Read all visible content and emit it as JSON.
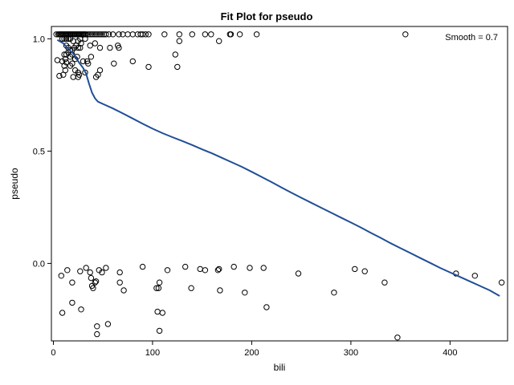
{
  "chart_data": {
    "type": "scatter",
    "title": "Fit Plot for pseudo",
    "xlabel": "bili",
    "ylabel": "pseudo",
    "annotation": "Smooth = 0.7",
    "xlim": [
      -2,
      458
    ],
    "ylim": [
      -0.345,
      1.055
    ],
    "xticks": [
      0,
      100,
      200,
      300,
      400
    ],
    "xtick_labels": [
      "0",
      "100",
      "200",
      "300",
      "400"
    ],
    "yticks": [
      0.0,
      0.5,
      1.0
    ],
    "ytick_labels": [
      "0.0",
      "0.5",
      "1.0"
    ],
    "grid": false,
    "colors": {
      "fit_line": "#1f4e96",
      "points": "#000000",
      "frame": "#000000"
    },
    "series": [
      {
        "type": "scatter",
        "marker": "open-circle",
        "points": [
          [
            3,
            1.02
          ],
          [
            5,
            1.02
          ],
          [
            6,
            1.02
          ],
          [
            7,
            1.02
          ],
          [
            8,
            1.02
          ],
          [
            9,
            1.02
          ],
          [
            10,
            1.02
          ],
          [
            11,
            1.02
          ],
          [
            12,
            1.02
          ],
          [
            13,
            1.02
          ],
          [
            14,
            1.02
          ],
          [
            15,
            1.02
          ],
          [
            16,
            1.02
          ],
          [
            17,
            1.02
          ],
          [
            18,
            1.02
          ],
          [
            19,
            1.02
          ],
          [
            20,
            1.02
          ],
          [
            21,
            1.02
          ],
          [
            22,
            1.02
          ],
          [
            23,
            1.02
          ],
          [
            24,
            1.02
          ],
          [
            25,
            1.02
          ],
          [
            26,
            1.02
          ],
          [
            27,
            1.02
          ],
          [
            28,
            1.02
          ],
          [
            29,
            1.02
          ],
          [
            30,
            1.02
          ],
          [
            31,
            1.02
          ],
          [
            32,
            1.02
          ],
          [
            33,
            1.02
          ],
          [
            35,
            1.02
          ],
          [
            37,
            1.02
          ],
          [
            39,
            1.02
          ],
          [
            41,
            1.02
          ],
          [
            43,
            1.02
          ],
          [
            45,
            1.02
          ],
          [
            47,
            1.02
          ],
          [
            49,
            1.02
          ],
          [
            51,
            1.02
          ],
          [
            53,
            1.02
          ],
          [
            56,
            1.02
          ],
          [
            60,
            1.02
          ],
          [
            66,
            1.02
          ],
          [
            70,
            1.02
          ],
          [
            75,
            1.02
          ],
          [
            80,
            1.02
          ],
          [
            85,
            1.02
          ],
          [
            88,
            1.02
          ],
          [
            90,
            1.02
          ],
          [
            93,
            1.02
          ],
          [
            96,
            1.02
          ],
          [
            112,
            1.02
          ],
          [
            127,
            1.02
          ],
          [
            140,
            1.02
          ],
          [
            153,
            1.02
          ],
          [
            159,
            1.02
          ],
          [
            178,
            1.02
          ],
          [
            179,
            1.02
          ],
          [
            188,
            1.02
          ],
          [
            205,
            1.02
          ],
          [
            355,
            1.02
          ],
          [
            9,
            1.0
          ],
          [
            11,
            1.0
          ],
          [
            13,
            1.0
          ],
          [
            15,
            1.0
          ],
          [
            17,
            1.0
          ],
          [
            20,
            0.99
          ],
          [
            25,
            0.99
          ],
          [
            27,
            1.0
          ],
          [
            32,
            1.0
          ],
          [
            28,
            0.98
          ],
          [
            37,
            0.97
          ],
          [
            127,
            0.99
          ],
          [
            167,
            0.99
          ],
          [
            13,
            0.97
          ],
          [
            15,
            0.96
          ],
          [
            17,
            0.95
          ],
          [
            19,
            0.95
          ],
          [
            21,
            0.96
          ],
          [
            23,
            0.97
          ],
          [
            25,
            0.96
          ],
          [
            27,
            0.96
          ],
          [
            42,
            0.98
          ],
          [
            47,
            0.96
          ],
          [
            57,
            0.96
          ],
          [
            65,
            0.97
          ],
          [
            66,
            0.96
          ],
          [
            11,
            0.93
          ],
          [
            13,
            0.93
          ],
          [
            15,
            0.94
          ],
          [
            17,
            0.92
          ],
          [
            19,
            0.93
          ],
          [
            22,
            0.91
          ],
          [
            30,
            0.9
          ],
          [
            34,
            0.9
          ],
          [
            38,
            0.92
          ],
          [
            12,
            0.91
          ],
          [
            24,
            0.92
          ],
          [
            123,
            0.93
          ],
          [
            4,
            0.905
          ],
          [
            9,
            0.9
          ],
          [
            11,
            0.88
          ],
          [
            13,
            0.895
          ],
          [
            19,
            0.89
          ],
          [
            22,
            0.86
          ],
          [
            25,
            0.85
          ],
          [
            26,
            0.84
          ],
          [
            32,
            0.85
          ],
          [
            35,
            0.89
          ],
          [
            43,
            0.83
          ],
          [
            45,
            0.84
          ],
          [
            47,
            0.86
          ],
          [
            61,
            0.89
          ],
          [
            80,
            0.9
          ],
          [
            96,
            0.875
          ],
          [
            125,
            0.875
          ],
          [
            6,
            0.835
          ],
          [
            10,
            0.84
          ],
          [
            12,
            0.86
          ],
          [
            17,
            0.88
          ],
          [
            20,
            0.83
          ],
          [
            25,
            0.83
          ],
          [
            8,
            -0.055
          ],
          [
            14,
            -0.03
          ],
          [
            19,
            -0.085
          ],
          [
            27,
            -0.035
          ],
          [
            33,
            -0.02
          ],
          [
            37,
            -0.04
          ],
          [
            38,
            -0.065
          ],
          [
            39,
            -0.1
          ],
          [
            40,
            -0.11
          ],
          [
            42,
            -0.085
          ],
          [
            43,
            -0.08
          ],
          [
            46,
            -0.03
          ],
          [
            49,
            -0.04
          ],
          [
            53,
            -0.02
          ],
          [
            67,
            -0.04
          ],
          [
            67,
            -0.085
          ],
          [
            71,
            -0.12
          ],
          [
            90,
            -0.015
          ],
          [
            104,
            -0.11
          ],
          [
            106,
            -0.11
          ],
          [
            107,
            -0.085
          ],
          [
            115,
            -0.03
          ],
          [
            133,
            -0.015
          ],
          [
            139,
            -0.11
          ],
          [
            148,
            -0.025
          ],
          [
            153,
            -0.03
          ],
          [
            166,
            -0.03
          ],
          [
            167,
            -0.025
          ],
          [
            168,
            -0.12
          ],
          [
            182,
            -0.015
          ],
          [
            193,
            -0.13
          ],
          [
            198,
            -0.02
          ],
          [
            212,
            -0.02
          ],
          [
            215,
            -0.195
          ],
          [
            247,
            -0.045
          ],
          [
            283,
            -0.13
          ],
          [
            304,
            -0.025
          ],
          [
            314,
            -0.035
          ],
          [
            334,
            -0.085
          ],
          [
            406,
            -0.045
          ],
          [
            425,
            -0.055
          ],
          [
            452,
            -0.085
          ],
          [
            9,
            -0.22
          ],
          [
            19,
            -0.175
          ],
          [
            28,
            -0.205
          ],
          [
            44,
            -0.28
          ],
          [
            55,
            -0.27
          ],
          [
            105,
            -0.215
          ],
          [
            110,
            -0.22
          ],
          [
            107,
            -0.3
          ],
          [
            44,
            -0.315
          ],
          [
            347,
            -0.33
          ]
        ]
      },
      {
        "type": "line",
        "name": "",
        "points": [
          [
            4,
            0.995
          ],
          [
            10,
            0.98
          ],
          [
            15,
            0.955
          ],
          [
            20,
            0.935
          ],
          [
            25,
            0.9
          ],
          [
            30,
            0.87
          ],
          [
            33,
            0.845
          ],
          [
            36,
            0.8
          ],
          [
            39,
            0.76
          ],
          [
            42,
            0.735
          ],
          [
            45,
            0.72
          ],
          [
            50,
            0.71
          ],
          [
            60,
            0.69
          ],
          [
            70,
            0.668
          ],
          [
            80,
            0.645
          ],
          [
            90,
            0.622
          ],
          [
            100,
            0.6
          ],
          [
            110,
            0.58
          ],
          [
            120,
            0.562
          ],
          [
            130,
            0.545
          ],
          [
            140,
            0.527
          ],
          [
            150,
            0.508
          ],
          [
            160,
            0.49
          ],
          [
            170,
            0.47
          ],
          [
            180,
            0.45
          ],
          [
            190,
            0.43
          ],
          [
            200,
            0.408
          ],
          [
            210,
            0.385
          ],
          [
            220,
            0.362
          ],
          [
            230,
            0.338
          ],
          [
            240,
            0.315
          ],
          [
            250,
            0.292
          ],
          [
            260,
            0.27
          ],
          [
            270,
            0.248
          ],
          [
            280,
            0.226
          ],
          [
            290,
            0.204
          ],
          [
            300,
            0.182
          ],
          [
            310,
            0.16
          ],
          [
            320,
            0.136
          ],
          [
            330,
            0.114
          ],
          [
            340,
            0.09
          ],
          [
            350,
            0.068
          ],
          [
            360,
            0.046
          ],
          [
            370,
            0.024
          ],
          [
            380,
            0.002
          ],
          [
            390,
            -0.02
          ],
          [
            400,
            -0.04
          ],
          [
            410,
            -0.06
          ],
          [
            420,
            -0.08
          ],
          [
            430,
            -0.1
          ],
          [
            440,
            -0.12
          ],
          [
            450,
            -0.145
          ]
        ]
      }
    ]
  }
}
